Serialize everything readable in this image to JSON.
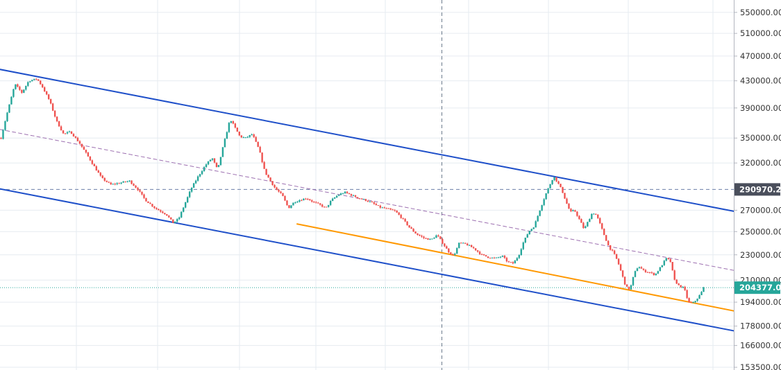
{
  "colors": {
    "up": "#26a69a",
    "down": "#ef5350",
    "channel": "#1e4fc9",
    "support": "#ff9800",
    "midline": "#9c6fb0",
    "hline": "#6b7fa8",
    "current_price": "#26a69a",
    "grid": "#e6ebf0",
    "crosshair": "#6b7a8c"
  },
  "chart_data": {
    "type": "candlestick",
    "price_scale": "log",
    "ylim": [
      152000,
      575000
    ],
    "y_ticks": [
      "550000.00",
      "510000.00",
      "470000.00",
      "430000.00",
      "390000.00",
      "350000.00",
      "320000.00",
      "290970.21",
      "270000.00",
      "250000.00",
      "230000.00",
      "210000.00",
      "204377.00",
      "194000.00",
      "178000.00",
      "166000.00",
      "153500.00"
    ],
    "tick_values": [
      550000,
      510000,
      470000,
      430000,
      390000,
      350000,
      320000,
      270000,
      250000,
      230000,
      210000,
      194000,
      178000,
      166000,
      153500
    ],
    "horizontal_line": {
      "value": 290970.21,
      "label": "290970.21"
    },
    "current_price": {
      "value": 204377.0,
      "label": "204377.00"
    },
    "grid": true,
    "bar_count": 340,
    "price_path": [
      [
        0,
        350000
      ],
      [
        8,
        380000
      ],
      [
        20,
        425000
      ],
      [
        30,
        412000
      ],
      [
        40,
        430000
      ],
      [
        52,
        433000
      ],
      [
        60,
        420000
      ],
      [
        70,
        400000
      ],
      [
        80,
        372000
      ],
      [
        90,
        355000
      ],
      [
        100,
        358000
      ],
      [
        112,
        345000
      ],
      [
        122,
        332000
      ],
      [
        135,
        315000
      ],
      [
        145,
        303000
      ],
      [
        158,
        296000
      ],
      [
        172,
        298000
      ],
      [
        185,
        300000
      ],
      [
        197,
        291000
      ],
      [
        208,
        280000
      ],
      [
        222,
        272000
      ],
      [
        238,
        266000
      ],
      [
        248,
        258000
      ],
      [
        256,
        262000
      ],
      [
        264,
        275000
      ],
      [
        274,
        292000
      ],
      [
        284,
        305000
      ],
      [
        295,
        318000
      ],
      [
        304,
        326000
      ],
      [
        312,
        312000
      ],
      [
        320,
        340000
      ],
      [
        330,
        375000
      ],
      [
        336,
        365000
      ],
      [
        344,
        352000
      ],
      [
        352,
        350000
      ],
      [
        362,
        355000
      ],
      [
        372,
        335000
      ],
      [
        380,
        310000
      ],
      [
        388,
        300000
      ],
      [
        395,
        292000
      ],
      [
        405,
        285000
      ],
      [
        414,
        272000
      ],
      [
        422,
        278000
      ],
      [
        430,
        280000
      ],
      [
        440,
        282000
      ],
      [
        450,
        278000
      ],
      [
        460,
        275000
      ],
      [
        468,
        272000
      ],
      [
        476,
        280000
      ],
      [
        485,
        285000
      ],
      [
        495,
        288000
      ],
      [
        505,
        285000
      ],
      [
        515,
        282000
      ],
      [
        525,
        280000
      ],
      [
        535,
        277000
      ],
      [
        545,
        273000
      ],
      [
        558,
        271000
      ],
      [
        568,
        269000
      ],
      [
        578,
        262000
      ],
      [
        588,
        254000
      ],
      [
        598,
        248000
      ],
      [
        610,
        244000
      ],
      [
        620,
        243000
      ],
      [
        628,
        247000
      ],
      [
        636,
        240000
      ],
      [
        644,
        233000
      ],
      [
        652,
        229000
      ],
      [
        660,
        240000
      ],
      [
        670,
        239000
      ],
      [
        682,
        235000
      ],
      [
        692,
        230000
      ],
      [
        702,
        228000
      ],
      [
        712,
        227000
      ],
      [
        722,
        229000
      ],
      [
        730,
        224000
      ],
      [
        738,
        223000
      ],
      [
        746,
        230000
      ],
      [
        752,
        240000
      ],
      [
        760,
        250000
      ],
      [
        768,
        255000
      ],
      [
        776,
        270000
      ],
      [
        784,
        285000
      ],
      [
        790,
        295000
      ],
      [
        796,
        305000
      ],
      [
        802,
        298000
      ],
      [
        808,
        290000
      ],
      [
        814,
        278000
      ],
      [
        820,
        268000
      ],
      [
        826,
        270000
      ],
      [
        834,
        260000
      ],
      [
        840,
        252000
      ],
      [
        846,
        260000
      ],
      [
        852,
        268000
      ],
      [
        858,
        265000
      ],
      [
        864,
        255000
      ],
      [
        870,
        245000
      ],
      [
        876,
        236000
      ],
      [
        882,
        232000
      ],
      [
        888,
        225000
      ],
      [
        894,
        215000
      ],
      [
        900,
        205000
      ],
      [
        906,
        203000
      ],
      [
        912,
        215000
      ],
      [
        918,
        221000
      ],
      [
        926,
        217000
      ],
      [
        934,
        216000
      ],
      [
        942,
        214000
      ],
      [
        950,
        220000
      ],
      [
        958,
        227000
      ],
      [
        964,
        225000
      ],
      [
        970,
        210000
      ],
      [
        976,
        206000
      ],
      [
        984,
        204000
      ],
      [
        990,
        194000
      ],
      [
        996,
        193000
      ],
      [
        1002,
        196000
      ],
      [
        1008,
        200000
      ],
      [
        1012,
        204377
      ]
    ],
    "trendlines": [
      {
        "name": "channel-upper",
        "kind": "channel",
        "from": [
          0,
          448000
        ],
        "to": [
          1057,
          269000
        ]
      },
      {
        "name": "channel-lower",
        "kind": "channel",
        "from": [
          0,
          291500
        ],
        "to": [
          1057,
          175000
        ]
      },
      {
        "name": "channel-mid",
        "kind": "midline",
        "from": [
          0,
          361000
        ],
        "to": [
          1057,
          217500
        ]
      },
      {
        "name": "support-line",
        "kind": "support",
        "from": [
          428,
          257000
        ],
        "to": [
          1057,
          188000
        ]
      }
    ]
  }
}
